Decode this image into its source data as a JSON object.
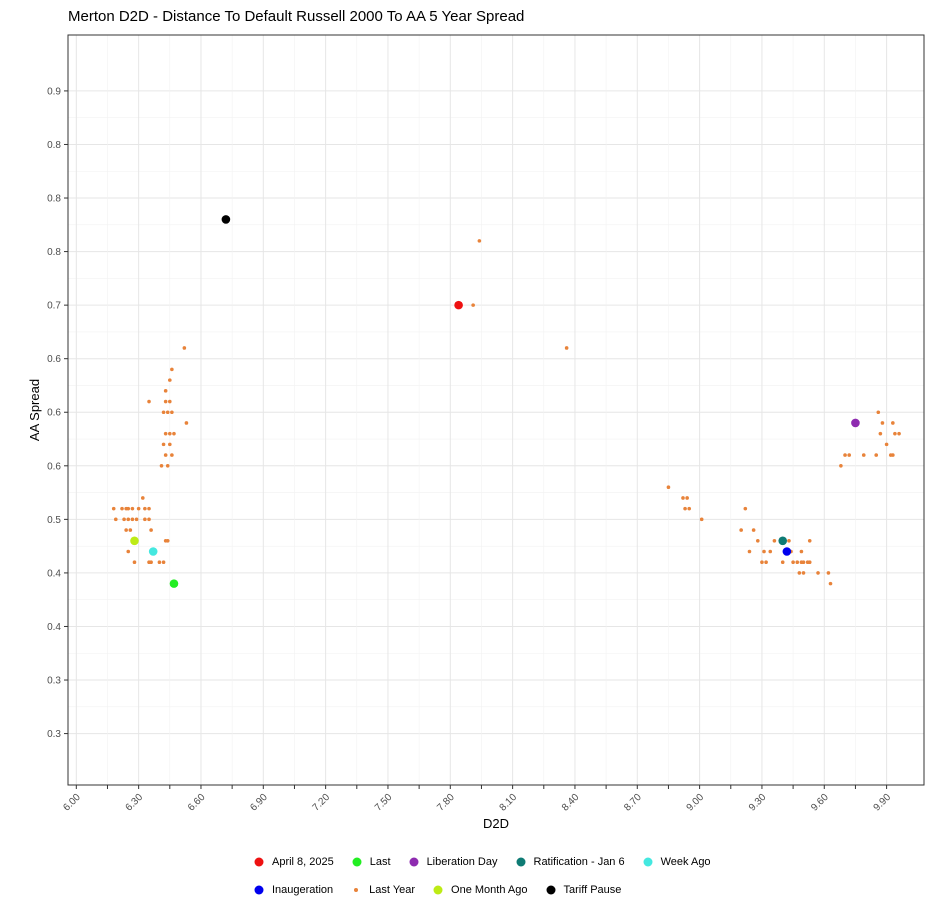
{
  "chart_data": {
    "type": "scatter",
    "title": "Merton D2D - Distance To Default Russell 2000 To AA 5 Year Spread",
    "xlabel": "D2D",
    "ylabel": "AA Spread",
    "x_ticks": [
      "6.00",
      "6.30",
      "6.60",
      "6.90",
      "7.20",
      "7.50",
      "7.80",
      "8.10",
      "8.40",
      "8.70",
      "9.00",
      "9.30",
      "9.60",
      "9.90"
    ],
    "y_ticks": [
      "0.3",
      "0.3",
      "0.4",
      "0.4",
      "0.5",
      "0.6",
      "0.6",
      "0.6",
      "0.7",
      "0.8",
      "0.8",
      "0.8",
      "0.9"
    ],
    "grid": true,
    "legend_position": "bottom",
    "series": [
      {
        "name": "Last Year",
        "color": "#E8833A",
        "size": "small",
        "points": [
          [
            7.91,
            0.7
          ],
          [
            7.94,
            0.76
          ],
          [
            8.36,
            0.66
          ],
          [
            6.52,
            0.66
          ],
          [
            6.46,
            0.64
          ],
          [
            6.45,
            0.63
          ],
          [
            6.43,
            0.62
          ],
          [
            6.35,
            0.61
          ],
          [
            6.43,
            0.61
          ],
          [
            6.45,
            0.61
          ],
          [
            6.42,
            0.6
          ],
          [
            6.44,
            0.6
          ],
          [
            6.46,
            0.6
          ],
          [
            6.53,
            0.59
          ],
          [
            6.43,
            0.58
          ],
          [
            6.45,
            0.58
          ],
          [
            6.47,
            0.58
          ],
          [
            6.42,
            0.57
          ],
          [
            6.45,
            0.57
          ],
          [
            6.43,
            0.56
          ],
          [
            6.46,
            0.56
          ],
          [
            6.41,
            0.55
          ],
          [
            6.44,
            0.55
          ],
          [
            6.32,
            0.52
          ],
          [
            6.18,
            0.51
          ],
          [
            6.22,
            0.51
          ],
          [
            6.24,
            0.51
          ],
          [
            6.25,
            0.51
          ],
          [
            6.27,
            0.51
          ],
          [
            6.3,
            0.51
          ],
          [
            6.33,
            0.51
          ],
          [
            6.35,
            0.51
          ],
          [
            6.19,
            0.5
          ],
          [
            6.23,
            0.5
          ],
          [
            6.25,
            0.5
          ],
          [
            6.27,
            0.5
          ],
          [
            6.29,
            0.5
          ],
          [
            6.33,
            0.5
          ],
          [
            6.35,
            0.5
          ],
          [
            6.24,
            0.49
          ],
          [
            6.26,
            0.49
          ],
          [
            6.36,
            0.49
          ],
          [
            6.29,
            0.48
          ],
          [
            6.43,
            0.48
          ],
          [
            6.44,
            0.48
          ],
          [
            6.25,
            0.47
          ],
          [
            6.36,
            0.47
          ],
          [
            6.28,
            0.46
          ],
          [
            6.35,
            0.46
          ],
          [
            6.36,
            0.46
          ],
          [
            6.38,
            0.47
          ],
          [
            6.4,
            0.46
          ],
          [
            6.42,
            0.46
          ],
          [
            8.85,
            0.53
          ],
          [
            8.92,
            0.52
          ],
          [
            8.94,
            0.52
          ],
          [
            8.93,
            0.51
          ],
          [
            8.95,
            0.51
          ],
          [
            9.01,
            0.5
          ],
          [
            9.22,
            0.51
          ],
          [
            9.2,
            0.49
          ],
          [
            9.26,
            0.49
          ],
          [
            9.28,
            0.48
          ],
          [
            9.31,
            0.47
          ],
          [
            9.36,
            0.48
          ],
          [
            9.39,
            0.48
          ],
          [
            9.43,
            0.48
          ],
          [
            9.53,
            0.48
          ],
          [
            9.24,
            0.47
          ],
          [
            9.34,
            0.47
          ],
          [
            9.44,
            0.47
          ],
          [
            9.49,
            0.47
          ],
          [
            9.3,
            0.46
          ],
          [
            9.32,
            0.46
          ],
          [
            9.4,
            0.46
          ],
          [
            9.45,
            0.46
          ],
          [
            9.47,
            0.46
          ],
          [
            9.49,
            0.46
          ],
          [
            9.5,
            0.46
          ],
          [
            9.52,
            0.46
          ],
          [
            9.53,
            0.46
          ],
          [
            9.48,
            0.45
          ],
          [
            9.5,
            0.45
          ],
          [
            9.57,
            0.45
          ],
          [
            9.62,
            0.45
          ],
          [
            9.63,
            0.44
          ],
          [
            9.68,
            0.55
          ],
          [
            9.7,
            0.56
          ],
          [
            9.72,
            0.56
          ],
          [
            9.79,
            0.56
          ],
          [
            9.85,
            0.56
          ],
          [
            9.9,
            0.57
          ],
          [
            9.93,
            0.56
          ],
          [
            9.94,
            0.58
          ],
          [
            9.96,
            0.58
          ],
          [
            9.87,
            0.58
          ],
          [
            9.92,
            0.56
          ],
          [
            9.86,
            0.6
          ],
          [
            9.88,
            0.59
          ],
          [
            9.93,
            0.59
          ]
        ]
      },
      {
        "name": "Tariff Pause",
        "color": "#000000",
        "size": "large",
        "points": [
          [
            6.72,
            0.78
          ]
        ]
      },
      {
        "name": "April 8, 2025",
        "color": "#EE1111",
        "size": "large",
        "points": [
          [
            7.84,
            0.7
          ]
        ]
      },
      {
        "name": "Liberation Day",
        "color": "#8E2BB0",
        "size": "large",
        "points": [
          [
            9.75,
            0.59
          ]
        ]
      },
      {
        "name": "Ratification - Jan 6",
        "color": "#0E7B74",
        "size": "large",
        "points": [
          [
            9.4,
            0.48
          ]
        ]
      },
      {
        "name": "Inaugeration",
        "color": "#0000EE",
        "size": "large",
        "points": [
          [
            9.42,
            0.47
          ]
        ]
      },
      {
        "name": "One Month Ago",
        "color": "#BDEB15",
        "size": "large",
        "points": [
          [
            6.28,
            0.48
          ]
        ]
      },
      {
        "name": "Week Ago",
        "color": "#44E8E0",
        "size": "large",
        "points": [
          [
            6.37,
            0.47
          ]
        ]
      },
      {
        "name": "Last",
        "color": "#22EE22",
        "size": "large",
        "points": [
          [
            6.47,
            0.44
          ]
        ]
      }
    ],
    "legend_rows": [
      [
        "April 8, 2025",
        "Last",
        "Liberation Day",
        "Ratification - Jan 6",
        "Week Ago"
      ],
      [
        "Inaugeration",
        "Last Year",
        "One Month Ago",
        "Tariff Pause"
      ]
    ],
    "xlim": [
      5.96,
      10.08
    ],
    "ylim": [
      0.252,
      0.9522
    ]
  }
}
